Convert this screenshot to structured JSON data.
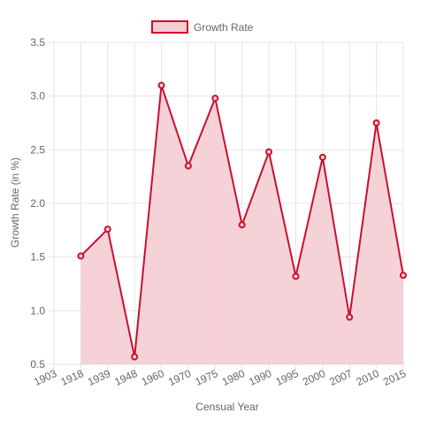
{
  "chart_data": {
    "type": "area",
    "x": [
      "1903",
      "1918",
      "1939",
      "1948",
      "1960",
      "1970",
      "1975",
      "1980",
      "1990",
      "1995",
      "2000",
      "2007",
      "2010",
      "2015"
    ],
    "series": [
      {
        "name": "Growth Rate",
        "values": [
          null,
          1.51,
          1.76,
          0.57,
          3.1,
          2.35,
          2.98,
          1.8,
          2.48,
          1.32,
          2.43,
          0.94,
          2.75,
          1.33
        ]
      }
    ],
    "xlabel": "Censual Year",
    "ylabel": "Growth Rate (in %)",
    "ylim": [
      0.5,
      3.5
    ],
    "yticks": [
      "0.5",
      "1.0",
      "1.5",
      "2.0",
      "2.5",
      "3.0",
      "3.5"
    ],
    "legend_position": "top",
    "grid": true,
    "colors": {
      "line": "#c8102e",
      "fill": "#f4cdd4",
      "grid": "#e4e4e4"
    }
  }
}
